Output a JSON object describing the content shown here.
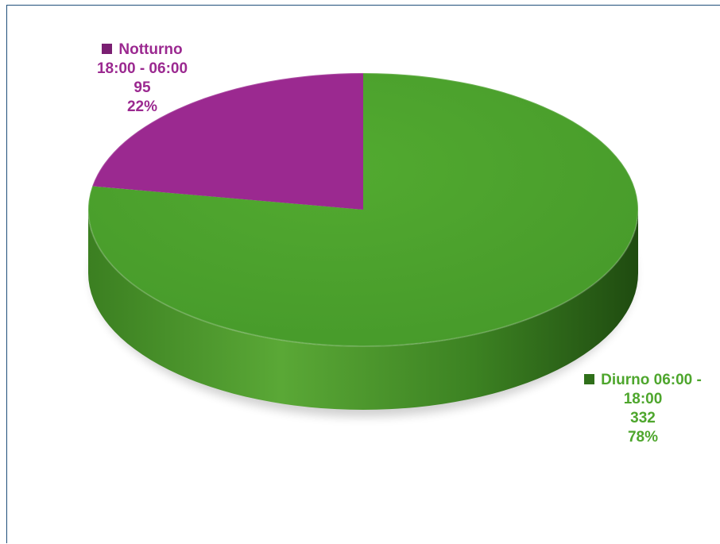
{
  "chart_data": {
    "type": "pie",
    "style": "3d",
    "categories": [
      "Notturno 18:00 - 06:00",
      "Diurno 06:00 - 18:00"
    ],
    "values": [
      95,
      332
    ],
    "percentages": [
      "22%",
      "78%"
    ],
    "colors": [
      "#9b2990",
      "#4ea62d"
    ],
    "labels": [
      {
        "lines": [
          "Notturno",
          "18:00 - 06:00",
          "95",
          "22%"
        ],
        "color": "#9b2990",
        "swatch": "#7a1f72"
      },
      {
        "lines": [
          "Diurno 06:00 -",
          "18:00",
          "332",
          "78%"
        ],
        "color": "#4ea62d",
        "swatch": "#2f6f1a"
      }
    ]
  }
}
